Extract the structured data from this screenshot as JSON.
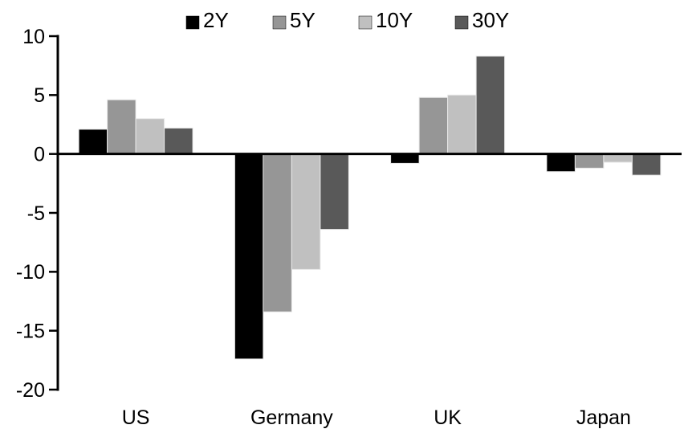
{
  "chart_data": {
    "type": "bar",
    "title": "",
    "categories": [
      "US",
      "Germany",
      "UK",
      "Japan"
    ],
    "series": [
      {
        "name": "2Y",
        "color": "#000000",
        "values": [
          2.1,
          -17.4,
          -0.8,
          -1.5
        ]
      },
      {
        "name": "5Y",
        "color": "#969696",
        "values": [
          4.6,
          -13.4,
          4.8,
          -1.2
        ]
      },
      {
        "name": "10Y",
        "color": "#c0c0c0",
        "values": [
          3.0,
          -9.8,
          5.0,
          -0.7
        ]
      },
      {
        "name": "30Y",
        "color": "#595959",
        "values": [
          2.2,
          -6.4,
          8.3,
          -1.8
        ]
      }
    ],
    "xlabel": "",
    "ylabel": "",
    "ylim": [
      -20,
      10
    ],
    "yticks": [
      10,
      5,
      0,
      -5,
      -10,
      -15,
      -20
    ],
    "grid": false,
    "legend_position": "top",
    "axis_color": "#000000",
    "bar_outline_color": "#e8e8e8",
    "background": "#ffffff"
  }
}
